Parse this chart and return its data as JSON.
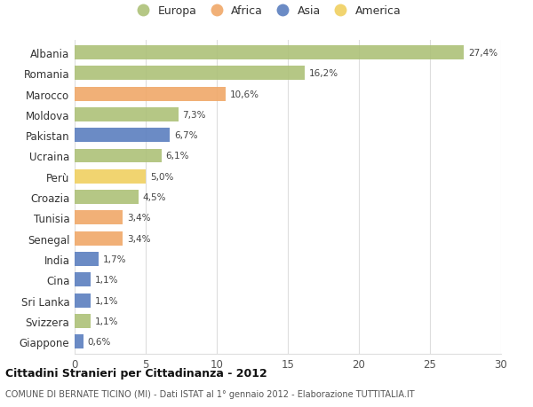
{
  "countries": [
    "Albania",
    "Romania",
    "Marocco",
    "Moldova",
    "Pakistan",
    "Ucraina",
    "Perù",
    "Croazia",
    "Tunisia",
    "Senegal",
    "India",
    "Cina",
    "Sri Lanka",
    "Svizzera",
    "Giappone"
  ],
  "values": [
    27.4,
    16.2,
    10.6,
    7.3,
    6.7,
    6.1,
    5.0,
    4.5,
    3.4,
    3.4,
    1.7,
    1.1,
    1.1,
    1.1,
    0.6
  ],
  "labels": [
    "27,4%",
    "16,2%",
    "10,6%",
    "7,3%",
    "6,7%",
    "6,1%",
    "5,0%",
    "4,5%",
    "3,4%",
    "3,4%",
    "1,7%",
    "1,1%",
    "1,1%",
    "1,1%",
    "0,6%"
  ],
  "continents": [
    "Europa",
    "Europa",
    "Africa",
    "Europa",
    "Asia",
    "Europa",
    "America",
    "Europa",
    "Africa",
    "Africa",
    "Asia",
    "Asia",
    "Asia",
    "Europa",
    "Asia"
  ],
  "colors": {
    "Europa": "#adc178",
    "Africa": "#f0a868",
    "Asia": "#5b7fbf",
    "America": "#f0d060"
  },
  "title": "Cittadini Stranieri per Cittadinanza - 2012",
  "subtitle": "COMUNE DI BERNATE TICINO (MI) - Dati ISTAT al 1° gennaio 2012 - Elaborazione TUTTITALIA.IT",
  "xlim": [
    0,
    30
  ],
  "xticks": [
    0,
    5,
    10,
    15,
    20,
    25,
    30
  ],
  "background_color": "#ffffff",
  "grid_color": "#dddddd"
}
